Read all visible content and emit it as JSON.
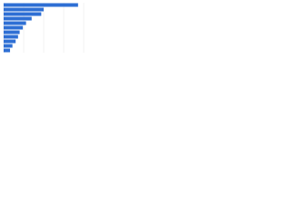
{
  "chart_data": {
    "type": "bar",
    "orientation": "horizontal",
    "categories": [
      null,
      null,
      null,
      null,
      null,
      null,
      null,
      null,
      null,
      null,
      null
    ],
    "values": [
      93,
      50,
      47,
      35,
      28,
      24,
      20,
      18,
      15,
      11,
      8
    ],
    "color": "#2e6fd4",
    "xlim": [
      0,
      100
    ],
    "xticks": [
      0,
      25,
      50,
      75,
      100
    ],
    "grid": true
  }
}
